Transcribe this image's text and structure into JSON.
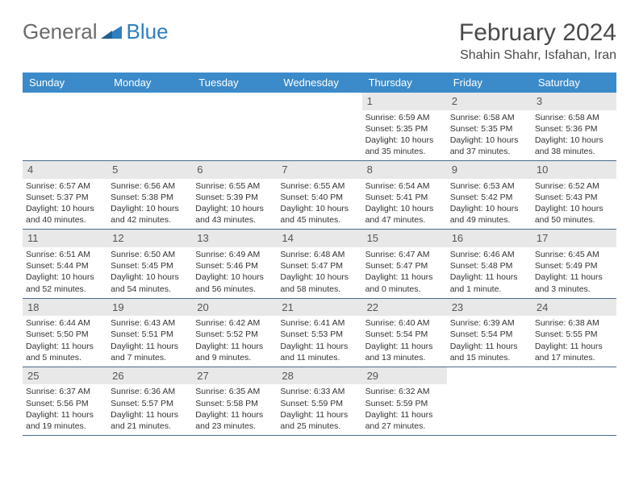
{
  "logo": {
    "text1": "General",
    "text2": "Blue"
  },
  "title": "February 2024",
  "location": "Shahin Shahr, Isfahan, Iran",
  "colors": {
    "header_bg": "#3b8bca",
    "header_fg": "#ffffff",
    "daynum_bg": "#e8e8e8",
    "week_border": "#4a6a8a",
    "text": "#333333"
  },
  "day_names": [
    "Sunday",
    "Monday",
    "Tuesday",
    "Wednesday",
    "Thursday",
    "Friday",
    "Saturday"
  ],
  "weeks": [
    [
      {
        "n": "",
        "sr": "",
        "ss": "",
        "dl": ""
      },
      {
        "n": "",
        "sr": "",
        "ss": "",
        "dl": ""
      },
      {
        "n": "",
        "sr": "",
        "ss": "",
        "dl": ""
      },
      {
        "n": "",
        "sr": "",
        "ss": "",
        "dl": ""
      },
      {
        "n": "1",
        "sr": "Sunrise: 6:59 AM",
        "ss": "Sunset: 5:35 PM",
        "dl": "Daylight: 10 hours and 35 minutes."
      },
      {
        "n": "2",
        "sr": "Sunrise: 6:58 AM",
        "ss": "Sunset: 5:35 PM",
        "dl": "Daylight: 10 hours and 37 minutes."
      },
      {
        "n": "3",
        "sr": "Sunrise: 6:58 AM",
        "ss": "Sunset: 5:36 PM",
        "dl": "Daylight: 10 hours and 38 minutes."
      }
    ],
    [
      {
        "n": "4",
        "sr": "Sunrise: 6:57 AM",
        "ss": "Sunset: 5:37 PM",
        "dl": "Daylight: 10 hours and 40 minutes."
      },
      {
        "n": "5",
        "sr": "Sunrise: 6:56 AM",
        "ss": "Sunset: 5:38 PM",
        "dl": "Daylight: 10 hours and 42 minutes."
      },
      {
        "n": "6",
        "sr": "Sunrise: 6:55 AM",
        "ss": "Sunset: 5:39 PM",
        "dl": "Daylight: 10 hours and 43 minutes."
      },
      {
        "n": "7",
        "sr": "Sunrise: 6:55 AM",
        "ss": "Sunset: 5:40 PM",
        "dl": "Daylight: 10 hours and 45 minutes."
      },
      {
        "n": "8",
        "sr": "Sunrise: 6:54 AM",
        "ss": "Sunset: 5:41 PM",
        "dl": "Daylight: 10 hours and 47 minutes."
      },
      {
        "n": "9",
        "sr": "Sunrise: 6:53 AM",
        "ss": "Sunset: 5:42 PM",
        "dl": "Daylight: 10 hours and 49 minutes."
      },
      {
        "n": "10",
        "sr": "Sunrise: 6:52 AM",
        "ss": "Sunset: 5:43 PM",
        "dl": "Daylight: 10 hours and 50 minutes."
      }
    ],
    [
      {
        "n": "11",
        "sr": "Sunrise: 6:51 AM",
        "ss": "Sunset: 5:44 PM",
        "dl": "Daylight: 10 hours and 52 minutes."
      },
      {
        "n": "12",
        "sr": "Sunrise: 6:50 AM",
        "ss": "Sunset: 5:45 PM",
        "dl": "Daylight: 10 hours and 54 minutes."
      },
      {
        "n": "13",
        "sr": "Sunrise: 6:49 AM",
        "ss": "Sunset: 5:46 PM",
        "dl": "Daylight: 10 hours and 56 minutes."
      },
      {
        "n": "14",
        "sr": "Sunrise: 6:48 AM",
        "ss": "Sunset: 5:47 PM",
        "dl": "Daylight: 10 hours and 58 minutes."
      },
      {
        "n": "15",
        "sr": "Sunrise: 6:47 AM",
        "ss": "Sunset: 5:47 PM",
        "dl": "Daylight: 11 hours and 0 minutes."
      },
      {
        "n": "16",
        "sr": "Sunrise: 6:46 AM",
        "ss": "Sunset: 5:48 PM",
        "dl": "Daylight: 11 hours and 1 minute."
      },
      {
        "n": "17",
        "sr": "Sunrise: 6:45 AM",
        "ss": "Sunset: 5:49 PM",
        "dl": "Daylight: 11 hours and 3 minutes."
      }
    ],
    [
      {
        "n": "18",
        "sr": "Sunrise: 6:44 AM",
        "ss": "Sunset: 5:50 PM",
        "dl": "Daylight: 11 hours and 5 minutes."
      },
      {
        "n": "19",
        "sr": "Sunrise: 6:43 AM",
        "ss": "Sunset: 5:51 PM",
        "dl": "Daylight: 11 hours and 7 minutes."
      },
      {
        "n": "20",
        "sr": "Sunrise: 6:42 AM",
        "ss": "Sunset: 5:52 PM",
        "dl": "Daylight: 11 hours and 9 minutes."
      },
      {
        "n": "21",
        "sr": "Sunrise: 6:41 AM",
        "ss": "Sunset: 5:53 PM",
        "dl": "Daylight: 11 hours and 11 minutes."
      },
      {
        "n": "22",
        "sr": "Sunrise: 6:40 AM",
        "ss": "Sunset: 5:54 PM",
        "dl": "Daylight: 11 hours and 13 minutes."
      },
      {
        "n": "23",
        "sr": "Sunrise: 6:39 AM",
        "ss": "Sunset: 5:54 PM",
        "dl": "Daylight: 11 hours and 15 minutes."
      },
      {
        "n": "24",
        "sr": "Sunrise: 6:38 AM",
        "ss": "Sunset: 5:55 PM",
        "dl": "Daylight: 11 hours and 17 minutes."
      }
    ],
    [
      {
        "n": "25",
        "sr": "Sunrise: 6:37 AM",
        "ss": "Sunset: 5:56 PM",
        "dl": "Daylight: 11 hours and 19 minutes."
      },
      {
        "n": "26",
        "sr": "Sunrise: 6:36 AM",
        "ss": "Sunset: 5:57 PM",
        "dl": "Daylight: 11 hours and 21 minutes."
      },
      {
        "n": "27",
        "sr": "Sunrise: 6:35 AM",
        "ss": "Sunset: 5:58 PM",
        "dl": "Daylight: 11 hours and 23 minutes."
      },
      {
        "n": "28",
        "sr": "Sunrise: 6:33 AM",
        "ss": "Sunset: 5:59 PM",
        "dl": "Daylight: 11 hours and 25 minutes."
      },
      {
        "n": "29",
        "sr": "Sunrise: 6:32 AM",
        "ss": "Sunset: 5:59 PM",
        "dl": "Daylight: 11 hours and 27 minutes."
      },
      {
        "n": "",
        "sr": "",
        "ss": "",
        "dl": ""
      },
      {
        "n": "",
        "sr": "",
        "ss": "",
        "dl": ""
      }
    ]
  ]
}
